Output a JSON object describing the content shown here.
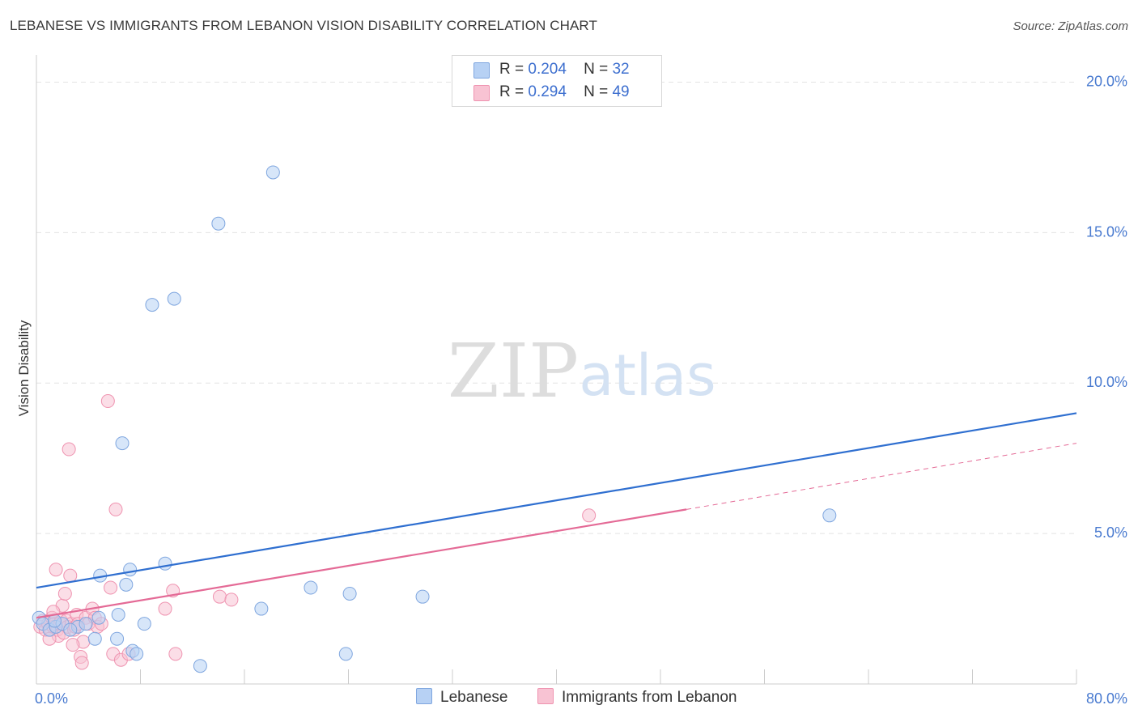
{
  "title": "LEBANESE VS IMMIGRANTS FROM LEBANON VISION DISABILITY CORRELATION CHART",
  "source": "Source: ZipAtlas.com",
  "watermark": {
    "zip": "ZIP",
    "atlas": "atlas"
  },
  "legend": {
    "series1": {
      "r_label": "R =",
      "r_value": "0.204",
      "n_label": "N =",
      "n_value": "32"
    },
    "series2": {
      "r_label": "R =",
      "r_value": "0.294",
      "n_label": "N =",
      "n_value": "49"
    }
  },
  "bottom_legend": {
    "series1": "Lebanese",
    "series2": "Immigrants from Lebanon"
  },
  "colors": {
    "blue_fill": "#b7d1f4",
    "blue_stroke": "#7fa6df",
    "blue_line": "#2f6fd0",
    "pink_fill": "#f8c3d3",
    "pink_stroke": "#ef93b0",
    "pink_line": "#e46a96",
    "grid": "#e3e3e3",
    "tick_text": "#4a7bd0"
  },
  "chart_data": {
    "type": "scatter",
    "title": "LEBANESE VS IMMIGRANTS FROM LEBANON VISION DISABILITY CORRELATION CHART",
    "xlabel": "",
    "ylabel": "Vision Disability",
    "xlim": [
      0,
      80
    ],
    "ylim": [
      0,
      20.9
    ],
    "x_tick_labels": [
      "0.0%",
      "80.0%"
    ],
    "y_ticks": [
      5,
      10,
      15,
      20
    ],
    "y_tick_labels": [
      "5.0%",
      "10.0%",
      "15.0%",
      "20.0%"
    ],
    "series": [
      {
        "name": "Lebanese",
        "R": 0.204,
        "N": 32,
        "trend": {
          "x0": 0,
          "y0": 3.2,
          "x1": 80,
          "y1": 9.0
        },
        "points": [
          [
            0.2,
            2.2
          ],
          [
            0.5,
            2.0
          ],
          [
            1.0,
            1.8
          ],
          [
            1.5,
            1.9
          ],
          [
            2.0,
            2.0
          ],
          [
            3.2,
            1.9
          ],
          [
            3.8,
            2.0
          ],
          [
            4.5,
            1.5
          ],
          [
            4.8,
            2.2
          ],
          [
            4.9,
            3.6
          ],
          [
            6.2,
            1.5
          ],
          [
            6.3,
            2.3
          ],
          [
            6.6,
            8.0
          ],
          [
            6.9,
            3.3
          ],
          [
            7.2,
            3.8
          ],
          [
            7.4,
            1.1
          ],
          [
            7.7,
            1.0
          ],
          [
            8.3,
            2.0
          ],
          [
            8.9,
            12.6
          ],
          [
            9.9,
            4.0
          ],
          [
            10.6,
            12.8
          ],
          [
            12.6,
            0.6
          ],
          [
            14.0,
            15.3
          ],
          [
            17.3,
            2.5
          ],
          [
            18.2,
            17.0
          ],
          [
            21.1,
            3.2
          ],
          [
            23.8,
            1.0
          ],
          [
            24.1,
            3.0
          ],
          [
            29.7,
            2.9
          ],
          [
            61.0,
            5.6
          ],
          [
            1.4,
            2.1
          ],
          [
            2.6,
            1.8
          ]
        ]
      },
      {
        "name": "Immigrants from Lebanon",
        "R": 0.294,
        "N": 49,
        "trend": {
          "x0": 0,
          "y0": 2.2,
          "x1": 50,
          "y1": 5.8,
          "dashed_to_x": 80,
          "dashed_to_y": 8.0
        },
        "points": [
          [
            0.3,
            1.9
          ],
          [
            0.5,
            2.1
          ],
          [
            0.7,
            1.8
          ],
          [
            0.9,
            2.0
          ],
          [
            1.1,
            1.8
          ],
          [
            1.2,
            2.2
          ],
          [
            1.3,
            1.9
          ],
          [
            1.4,
            2.0
          ],
          [
            1.5,
            3.8
          ],
          [
            1.6,
            1.8
          ],
          [
            1.7,
            1.6
          ],
          [
            1.8,
            2.0
          ],
          [
            1.9,
            2.1
          ],
          [
            2.0,
            2.6
          ],
          [
            2.1,
            1.7
          ],
          [
            2.2,
            3.0
          ],
          [
            2.3,
            2.1
          ],
          [
            2.4,
            1.9
          ],
          [
            2.5,
            7.8
          ],
          [
            2.6,
            3.6
          ],
          [
            2.7,
            2.0
          ],
          [
            2.9,
            1.8
          ],
          [
            3.0,
            1.9
          ],
          [
            3.1,
            2.3
          ],
          [
            3.2,
            2.0
          ],
          [
            3.4,
            0.9
          ],
          [
            3.5,
            0.7
          ],
          [
            3.6,
            1.4
          ],
          [
            3.8,
            2.2
          ],
          [
            4.0,
            2.0
          ],
          [
            4.3,
            2.5
          ],
          [
            4.5,
            2.2
          ],
          [
            4.7,
            1.9
          ],
          [
            5.0,
            2.0
          ],
          [
            5.5,
            9.4
          ],
          [
            5.7,
            3.2
          ],
          [
            5.9,
            1.0
          ],
          [
            6.1,
            5.8
          ],
          [
            6.5,
            0.8
          ],
          [
            7.1,
            1.0
          ],
          [
            9.9,
            2.5
          ],
          [
            10.5,
            3.1
          ],
          [
            10.7,
            1.0
          ],
          [
            14.1,
            2.9
          ],
          [
            15.0,
            2.8
          ],
          [
            42.5,
            5.6
          ],
          [
            1.0,
            1.5
          ],
          [
            2.8,
            1.3
          ],
          [
            1.3,
            2.4
          ]
        ]
      }
    ]
  }
}
